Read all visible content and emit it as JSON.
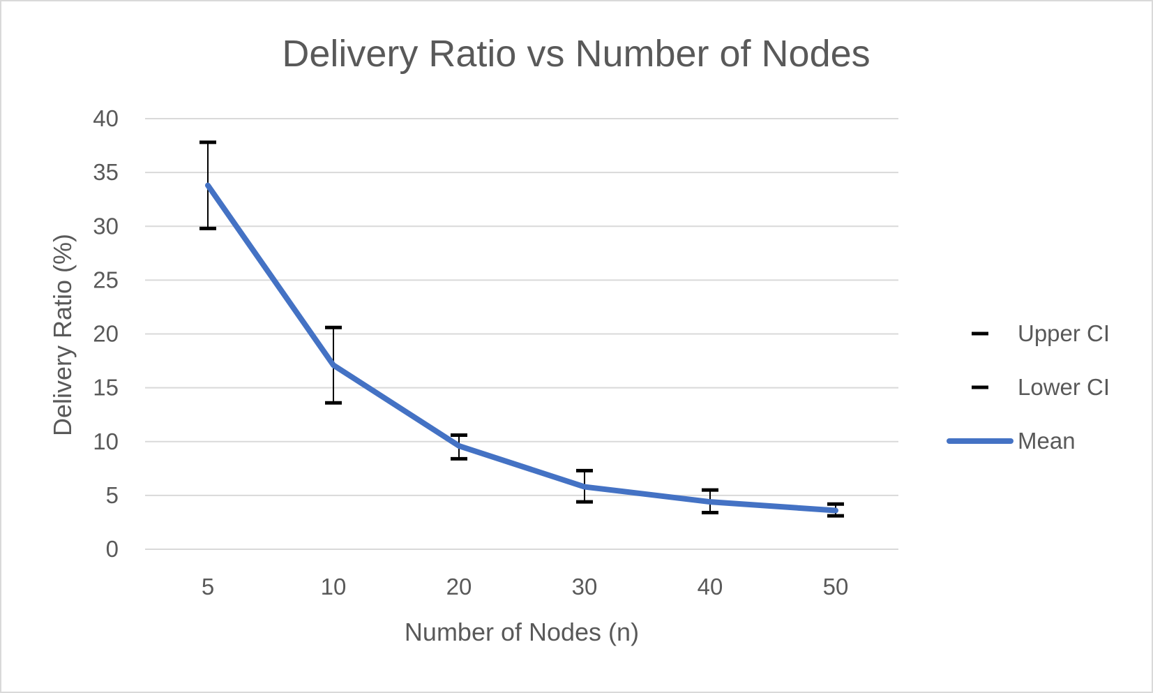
{
  "chart_data": {
    "type": "line",
    "title": "Delivery Ratio vs Number of Nodes",
    "xlabel": "Number of Nodes (n)",
    "ylabel": "Delivery Ratio (%)",
    "categories": [
      "5",
      "10",
      "20",
      "30",
      "40",
      "50"
    ],
    "ylim": [
      0,
      40
    ],
    "yticks": [
      "0",
      "5",
      "10",
      "15",
      "20",
      "25",
      "30",
      "35",
      "40"
    ],
    "grid": true,
    "legend_position": "right",
    "series": [
      {
        "name": "Upper CI",
        "values": [
          37.8,
          20.6,
          10.6,
          7.3,
          5.5,
          4.2
        ],
        "color": "#000000"
      },
      {
        "name": "Lower CI",
        "values": [
          29.8,
          13.6,
          8.4,
          4.4,
          3.4,
          3.1
        ],
        "color": "#000000"
      },
      {
        "name": "Mean",
        "values": [
          33.8,
          17.1,
          9.6,
          5.8,
          4.4,
          3.6
        ],
        "color": "#4472c4"
      }
    ]
  }
}
